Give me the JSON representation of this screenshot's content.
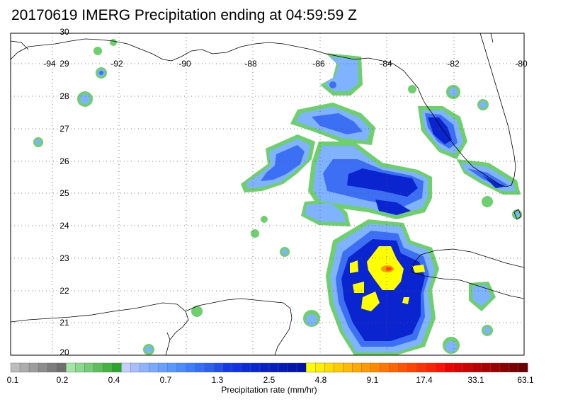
{
  "title": "20170619 IMERG Precipitation ending at 04:59:59 Z",
  "map": {
    "lon_ticks": [
      {
        "value": -94,
        "label": "-94"
      },
      {
        "value": -92,
        "label": "-92"
      },
      {
        "value": -90,
        "label": "-90"
      },
      {
        "value": -88,
        "label": "-88"
      },
      {
        "value": -86,
        "label": "-86"
      },
      {
        "value": -84,
        "label": "-84"
      },
      {
        "value": -82,
        "label": "-82"
      },
      {
        "value": -80,
        "label": "-80"
      }
    ],
    "lat_ticks": [
      {
        "value": 30,
        "label": "30"
      },
      {
        "value": 29,
        "label": "29"
      },
      {
        "value": 28,
        "label": "28"
      },
      {
        "value": 27,
        "label": "27"
      },
      {
        "value": 26,
        "label": "26"
      },
      {
        "value": 25,
        "label": "25"
      },
      {
        "value": 24,
        "label": "24"
      },
      {
        "value": 23,
        "label": "23"
      },
      {
        "value": 22,
        "label": "22"
      },
      {
        "value": 21,
        "label": "21"
      },
      {
        "value": 20,
        "label": "20"
      }
    ],
    "lon_range": [
      -95,
      -80
    ],
    "lat_range": [
      20,
      30
    ],
    "gridlines": "dotted",
    "coastlines": true
  },
  "colorbar": {
    "label": "Precipitation rate (mm/hr)",
    "colors": [
      "#bcbcbc",
      "#acacac",
      "#9c9c9c",
      "#8c8c8c",
      "#7c7c7c",
      "#6e6e6e",
      "#a3e6a3",
      "#8cd98c",
      "#74cc74",
      "#5cbf5c",
      "#44b244",
      "#2da52d",
      "#c3cfff",
      "#a8bdff",
      "#8fb2ff",
      "#79a9ff",
      "#68a0ff",
      "#5998ff",
      "#4a8bff",
      "#3e7cff",
      "#326ff5",
      "#2a5ff0",
      "#2050ea",
      "#1438e6",
      "#1032e0",
      "#0c2ad8",
      "#0a24d0",
      "#0820c8",
      "#061cc0",
      "#0418b8",
      "#0214b0",
      "#0010a8",
      "#ffff00",
      "#ffee00",
      "#ffdd00",
      "#ffcc00",
      "#ffbb00",
      "#ffaa00",
      "#ff9900",
      "#ff8800",
      "#ff7700",
      "#ff6600",
      "#ff5500",
      "#ff4400",
      "#ff3300",
      "#ff2200",
      "#ff1100",
      "#ee0000",
      "#dd0000",
      "#cc0000",
      "#bb0000",
      "#aa0000",
      "#9a0000",
      "#8a0000",
      "#7a0000",
      "#6c0000"
    ],
    "tick_labels": [
      "0.1",
      "0.2",
      "0.4",
      "0.7",
      "1.3",
      "2.5",
      "4.8",
      "9.1",
      "17.4",
      "33.1",
      "63.1"
    ]
  }
}
